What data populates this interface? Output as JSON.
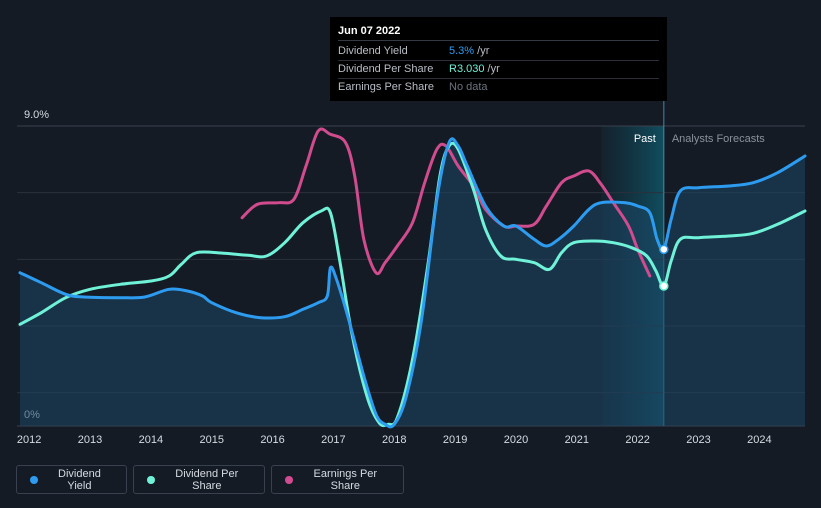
{
  "tooltip": {
    "date": "Jun 07 2022",
    "rows": [
      {
        "label": "Dividend Yield",
        "value": "5.3%",
        "suffix": " /yr",
        "color": "#2d9cf0"
      },
      {
        "label": "Dividend Per Share",
        "value": "R3.030",
        "suffix": " /yr",
        "color": "#6ff2d8"
      },
      {
        "label": "Earnings Per Share",
        "value": "No data",
        "suffix": "",
        "color": "#6b7280"
      }
    ]
  },
  "legend": [
    {
      "label": "Dividend Yield",
      "color": "#2d9cf0"
    },
    {
      "label": "Dividend Per Share",
      "color": "#6ff2d8"
    },
    {
      "label": "Earnings Per Share",
      "color": "#d14b8f"
    }
  ],
  "chart_data": {
    "type": "line",
    "title": "",
    "xlabel": "",
    "ylabel": "",
    "y_top_label": "9.0%",
    "y_bottom_label": "0%",
    "ylim": [
      0,
      9.0
    ],
    "xlim": [
      2011.8,
      2024.75
    ],
    "x_ticks": [
      "2012",
      "2013",
      "2014",
      "2015",
      "2016",
      "2017",
      "2018",
      "2019",
      "2020",
      "2021",
      "2022",
      "2023",
      "2024"
    ],
    "past_label": "Past",
    "forecast_label": "Analysts Forecasts",
    "forecast_start": 2022.43,
    "past_shade_start": 2021.4,
    "series": [
      {
        "name": "Dividend Yield",
        "color": "#2d9cf0",
        "points": [
          [
            2011.85,
            4.6
          ],
          [
            2012.2,
            4.3
          ],
          [
            2012.6,
            3.95
          ],
          [
            2012.9,
            3.87
          ],
          [
            2013.5,
            3.85
          ],
          [
            2013.9,
            3.87
          ],
          [
            2014.3,
            4.1
          ],
          [
            2014.6,
            4.05
          ],
          [
            2014.85,
            3.9
          ],
          [
            2015.0,
            3.7
          ],
          [
            2015.4,
            3.4
          ],
          [
            2015.8,
            3.25
          ],
          [
            2016.2,
            3.28
          ],
          [
            2016.5,
            3.5
          ],
          [
            2016.75,
            3.7
          ],
          [
            2016.9,
            3.9
          ],
          [
            2016.95,
            4.75
          ],
          [
            2017.05,
            4.4
          ],
          [
            2017.25,
            3.2
          ],
          [
            2017.5,
            1.5
          ],
          [
            2017.7,
            0.35
          ],
          [
            2017.85,
            0.05
          ],
          [
            2018.0,
            0.05
          ],
          [
            2018.2,
            0.9
          ],
          [
            2018.45,
            3.2
          ],
          [
            2018.7,
            6.8
          ],
          [
            2018.9,
            8.5
          ],
          [
            2019.05,
            8.4
          ],
          [
            2019.2,
            7.8
          ],
          [
            2019.5,
            6.6
          ],
          [
            2019.8,
            6.0
          ],
          [
            2020.0,
            6.0
          ],
          [
            2020.3,
            5.6
          ],
          [
            2020.5,
            5.4
          ],
          [
            2020.7,
            5.6
          ],
          [
            2020.95,
            6.0
          ],
          [
            2021.2,
            6.5
          ],
          [
            2021.4,
            6.7
          ],
          [
            2021.8,
            6.7
          ],
          [
            2022.0,
            6.6
          ],
          [
            2022.2,
            6.4
          ],
          [
            2022.32,
            5.6
          ],
          [
            2022.43,
            5.3
          ],
          [
            2022.55,
            6.2
          ],
          [
            2022.7,
            7.05
          ],
          [
            2023.0,
            7.15
          ],
          [
            2023.5,
            7.2
          ],
          [
            2023.9,
            7.3
          ],
          [
            2024.3,
            7.6
          ],
          [
            2024.75,
            8.1
          ]
        ]
      },
      {
        "name": "Dividend Per Share",
        "color": "#6ff2d8",
        "points": [
          [
            2011.85,
            3.05
          ],
          [
            2012.2,
            3.4
          ],
          [
            2012.6,
            3.85
          ],
          [
            2013.0,
            4.1
          ],
          [
            2013.5,
            4.25
          ],
          [
            2014.0,
            4.35
          ],
          [
            2014.3,
            4.5
          ],
          [
            2014.5,
            4.85
          ],
          [
            2014.75,
            5.2
          ],
          [
            2015.2,
            5.18
          ],
          [
            2015.6,
            5.12
          ],
          [
            2015.9,
            5.1
          ],
          [
            2016.2,
            5.5
          ],
          [
            2016.5,
            6.1
          ],
          [
            2016.8,
            6.45
          ],
          [
            2016.95,
            6.4
          ],
          [
            2017.1,
            5.0
          ],
          [
            2017.3,
            2.8
          ],
          [
            2017.55,
            0.9
          ],
          [
            2017.75,
            0.1
          ],
          [
            2017.9,
            0.05
          ],
          [
            2018.05,
            0.25
          ],
          [
            2018.3,
            2.0
          ],
          [
            2018.55,
            4.8
          ],
          [
            2018.75,
            7.5
          ],
          [
            2018.9,
            8.4
          ],
          [
            2019.05,
            8.3
          ],
          [
            2019.3,
            7.1
          ],
          [
            2019.5,
            5.9
          ],
          [
            2019.75,
            5.1
          ],
          [
            2020.0,
            5.0
          ],
          [
            2020.3,
            4.9
          ],
          [
            2020.55,
            4.7
          ],
          [
            2020.75,
            5.2
          ],
          [
            2020.95,
            5.5
          ],
          [
            2021.3,
            5.55
          ],
          [
            2021.6,
            5.5
          ],
          [
            2021.9,
            5.35
          ],
          [
            2022.15,
            5.1
          ],
          [
            2022.3,
            4.65
          ],
          [
            2022.43,
            4.2
          ],
          [
            2022.55,
            4.95
          ],
          [
            2022.7,
            5.6
          ],
          [
            2023.0,
            5.65
          ],
          [
            2023.5,
            5.7
          ],
          [
            2023.9,
            5.78
          ],
          [
            2024.3,
            6.05
          ],
          [
            2024.75,
            6.45
          ]
        ]
      },
      {
        "name": "Earnings Per Share",
        "color": "#d14b8f",
        "points": [
          [
            2015.5,
            6.25
          ],
          [
            2015.75,
            6.65
          ],
          [
            2016.1,
            6.7
          ],
          [
            2016.35,
            6.8
          ],
          [
            2016.55,
            7.8
          ],
          [
            2016.75,
            8.85
          ],
          [
            2016.95,
            8.75
          ],
          [
            2017.2,
            8.5
          ],
          [
            2017.35,
            7.5
          ],
          [
            2017.5,
            5.6
          ],
          [
            2017.7,
            4.6
          ],
          [
            2017.85,
            4.9
          ],
          [
            2018.05,
            5.4
          ],
          [
            2018.3,
            6.1
          ],
          [
            2018.5,
            7.3
          ],
          [
            2018.7,
            8.3
          ],
          [
            2018.85,
            8.4
          ],
          [
            2019.05,
            7.8
          ],
          [
            2019.3,
            7.2
          ],
          [
            2019.5,
            6.5
          ],
          [
            2019.8,
            6.0
          ],
          [
            2020.0,
            6.0
          ],
          [
            2020.3,
            6.05
          ],
          [
            2020.5,
            6.6
          ],
          [
            2020.75,
            7.3
          ],
          [
            2020.95,
            7.5
          ],
          [
            2021.2,
            7.65
          ],
          [
            2021.4,
            7.25
          ],
          [
            2021.6,
            6.7
          ],
          [
            2021.85,
            6.0
          ],
          [
            2022.0,
            5.3
          ],
          [
            2022.2,
            4.5
          ]
        ]
      }
    ],
    "markers": [
      {
        "series": "Dividend Yield",
        "x": 2022.43,
        "y": 5.3
      },
      {
        "series": "Dividend Per Share",
        "x": 2022.43,
        "y": 4.2
      }
    ]
  }
}
